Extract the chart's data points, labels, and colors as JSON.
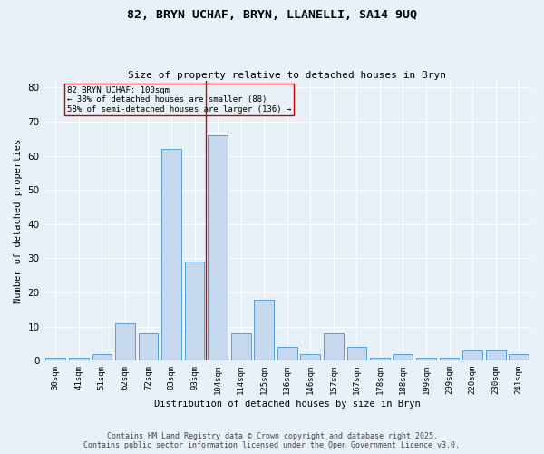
{
  "title_line1": "82, BRYN UCHAF, BRYN, LLANELLI, SA14 9UQ",
  "title_line2": "Size of property relative to detached houses in Bryn",
  "xlabel": "Distribution of detached houses by size in Bryn",
  "ylabel": "Number of detached properties",
  "categories": [
    "30sqm",
    "41sqm",
    "51sqm",
    "62sqm",
    "72sqm",
    "83sqm",
    "93sqm",
    "104sqm",
    "114sqm",
    "125sqm",
    "136sqm",
    "146sqm",
    "157sqm",
    "167sqm",
    "178sqm",
    "188sqm",
    "199sqm",
    "209sqm",
    "220sqm",
    "230sqm",
    "241sqm"
  ],
  "values": [
    1,
    1,
    2,
    11,
    8,
    62,
    29,
    66,
    8,
    18,
    4,
    2,
    8,
    4,
    1,
    2,
    1,
    1,
    3,
    3,
    2
  ],
  "bar_color": "#c5d8ed",
  "bar_edge_color": "#5a9fd4",
  "vline_pos": 6.5,
  "vline_color": "#cc0000",
  "annotation_text": "82 BRYN UCHAF: 100sqm\n← 38% of detached houses are smaller (88)\n58% of semi-detached houses are larger (136) →",
  "ylim": [
    0,
    82
  ],
  "yticks": [
    0,
    10,
    20,
    30,
    40,
    50,
    60,
    70,
    80
  ],
  "background_color": "#e8f0f8",
  "grid_color": "#ffffff",
  "footer_line1": "Contains HM Land Registry data © Crown copyright and database right 2025.",
  "footer_line2": "Contains public sector information licensed under the Open Government Licence v3.0."
}
